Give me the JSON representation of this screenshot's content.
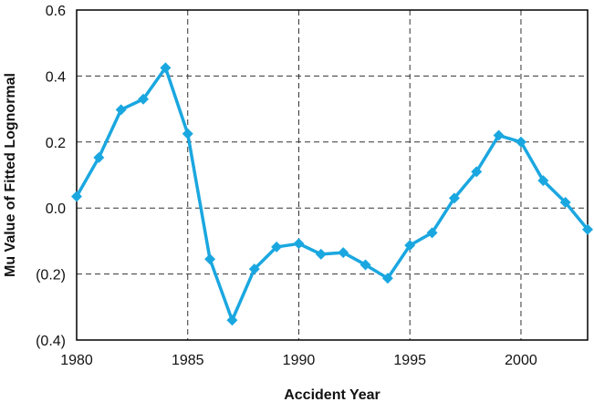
{
  "chart_data": {
    "type": "line",
    "title": "",
    "xlabel": "Accident Year",
    "ylabel": "Mu Value of Fitted Lognormal",
    "xlim": [
      1980,
      2003
    ],
    "ylim": [
      -0.4,
      0.6
    ],
    "x_ticks": [
      1980,
      1985,
      1990,
      1995,
      2000
    ],
    "x_tick_labels": [
      "1980",
      "1985",
      "1990",
      "1995",
      "2000"
    ],
    "y_ticks": [
      0.6,
      0.4,
      0.2,
      0.0,
      -0.2,
      -0.4
    ],
    "y_tick_labels": [
      "0.6",
      "0.4",
      "0.2",
      "0.0",
      "(0.2)",
      "(0.4)"
    ],
    "grid": true,
    "grid_style": "dashed",
    "legend": "none",
    "series": [
      {
        "color": "#1aa7e0",
        "marker": "diamond",
        "x": [
          1980,
          1981,
          1982,
          1983,
          1984,
          1985,
          1986,
          1987,
          1988,
          1989,
          1990,
          1991,
          1992,
          1993,
          1994,
          1995,
          1996,
          1997,
          1998,
          1999,
          2000,
          2001,
          2002,
          2003
        ],
        "values": [
          0.035,
          0.153,
          0.298,
          0.33,
          0.425,
          0.225,
          -0.155,
          -0.34,
          -0.185,
          -0.118,
          -0.108,
          -0.14,
          -0.135,
          -0.172,
          -0.213,
          -0.113,
          -0.075,
          0.03,
          0.11,
          0.22,
          0.2,
          0.083,
          0.017,
          -0.065
        ]
      }
    ]
  }
}
